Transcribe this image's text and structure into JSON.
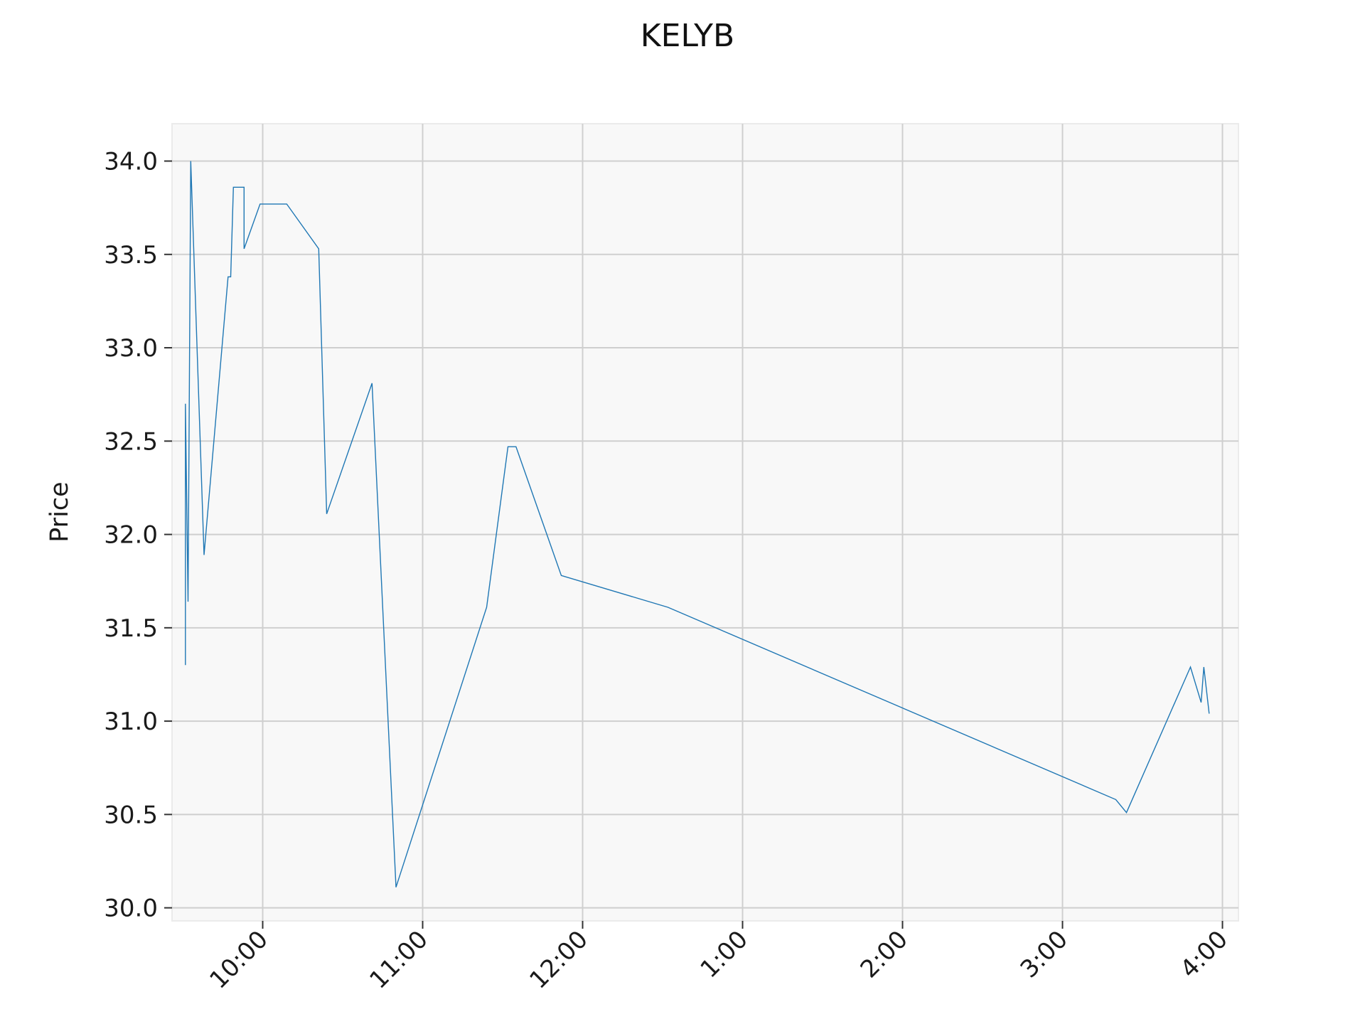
{
  "chart_data": {
    "type": "line",
    "title": "KELYB",
    "xlabel": "",
    "ylabel": "Price",
    "ylim": [
      29.93,
      34.2
    ],
    "xlim": [
      "09:26",
      "16:06"
    ],
    "grid": true,
    "x_ticks": [
      {
        "time": "10:00",
        "label": "10:00"
      },
      {
        "time": "11:00",
        "label": "11:00"
      },
      {
        "time": "12:00",
        "label": "12:00"
      },
      {
        "time": "13:00",
        "label": "1:00"
      },
      {
        "time": "14:00",
        "label": "2:00"
      },
      {
        "time": "15:00",
        "label": "3:00"
      },
      {
        "time": "16:00",
        "label": "4:00"
      }
    ],
    "y_ticks": [
      {
        "value": 30.0,
        "label": "30.0"
      },
      {
        "value": 30.5,
        "label": "30.5"
      },
      {
        "value": 31.0,
        "label": "31.0"
      },
      {
        "value": 31.5,
        "label": "31.5"
      },
      {
        "value": 32.0,
        "label": "32.0"
      },
      {
        "value": 32.5,
        "label": "32.5"
      },
      {
        "value": 33.0,
        "label": "33.0"
      },
      {
        "value": 33.5,
        "label": "33.5"
      },
      {
        "value": 34.0,
        "label": "34.0"
      }
    ],
    "series": [
      {
        "color": "#1f77b4",
        "points": [
          {
            "x": "09:31",
            "y": 31.3
          },
          {
            "x": "09:31",
            "y": 32.7
          },
          {
            "x": "09:32",
            "y": 31.64
          },
          {
            "x": "09:33",
            "y": 34.0
          },
          {
            "x": "09:38",
            "y": 31.89
          },
          {
            "x": "09:47",
            "y": 33.38
          },
          {
            "x": "09:48",
            "y": 33.38
          },
          {
            "x": "09:49",
            "y": 33.86
          },
          {
            "x": "09:53",
            "y": 33.86
          },
          {
            "x": "09:53",
            "y": 33.53
          },
          {
            "x": "09:59",
            "y": 33.77
          },
          {
            "x": "10:09",
            "y": 33.77
          },
          {
            "x": "10:21",
            "y": 33.53
          },
          {
            "x": "10:24",
            "y": 32.11
          },
          {
            "x": "10:41",
            "y": 32.81
          },
          {
            "x": "10:50",
            "y": 30.11
          },
          {
            "x": "11:24",
            "y": 31.61
          },
          {
            "x": "11:32",
            "y": 32.47
          },
          {
            "x": "11:35",
            "y": 32.47
          },
          {
            "x": "11:52",
            "y": 31.78
          },
          {
            "x": "12:32",
            "y": 31.61
          },
          {
            "x": "15:20",
            "y": 30.58
          },
          {
            "x": "15:24",
            "y": 30.51
          },
          {
            "x": "15:48",
            "y": 31.29
          },
          {
            "x": "15:52",
            "y": 31.1
          },
          {
            "x": "15:53",
            "y": 31.29
          },
          {
            "x": "15:55",
            "y": 31.04
          }
        ]
      }
    ]
  }
}
